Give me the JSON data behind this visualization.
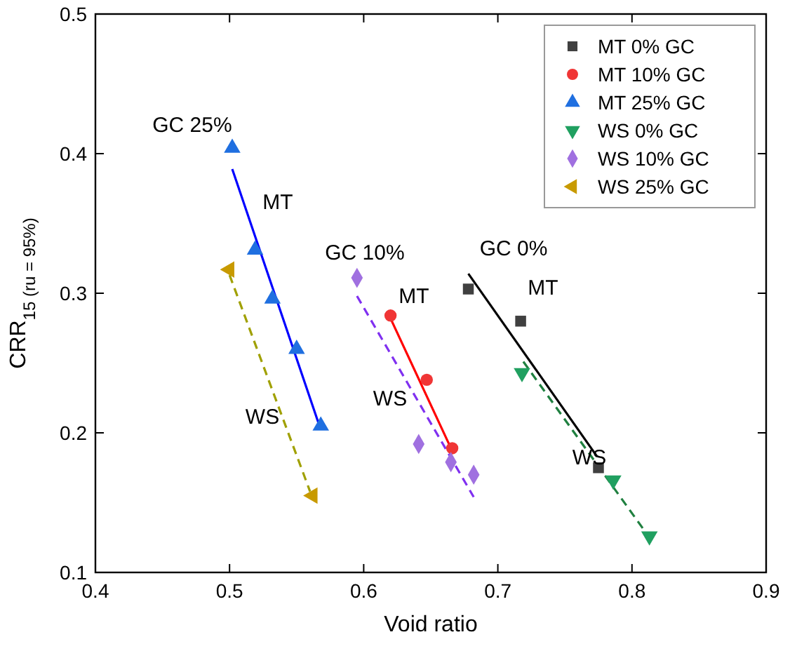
{
  "chart_data": {
    "type": "scatter",
    "xlabel": "Void ratio",
    "ylabel": "CRR$_{15 (ru = 95%)}$",
    "xlim": [
      0.4,
      0.9
    ],
    "ylim": [
      0.1,
      0.5
    ],
    "xticks": [
      0.4,
      0.5,
      0.6,
      0.7,
      0.8,
      0.9
    ],
    "yticks": [
      0.1,
      0.2,
      0.3,
      0.4,
      0.5
    ],
    "grid": false,
    "legend": "top right",
    "series": [
      {
        "name": "MT 0% GC",
        "color": "#404040",
        "marker": "square",
        "x": [
          0.678,
          0.717,
          0.775
        ],
        "values": [
          0.303,
          0.28,
          0.175
        ]
      },
      {
        "name": "MT 10% GC",
        "color": "#f03535",
        "marker": "circle",
        "x": [
          0.62,
          0.647,
          0.666
        ],
        "values": [
          0.284,
          0.238,
          0.189
        ]
      },
      {
        "name": "MT 25% GC",
        "color": "#1f6fe0",
        "marker": "triangle",
        "x": [
          0.502,
          0.519,
          0.532,
          0.55,
          0.568
        ],
        "values": [
          0.404,
          0.331,
          0.296,
          0.26,
          0.205
        ]
      },
      {
        "name": "WS 0% GC",
        "color": "#20a060",
        "marker": "triangle-down",
        "x": [
          0.718,
          0.786,
          0.813
        ],
        "values": [
          0.243,
          0.166,
          0.126
        ]
      },
      {
        "name": "WS 10% GC",
        "color": "#a070e0",
        "marker": "diamond",
        "x": [
          0.595,
          0.641,
          0.665,
          0.682
        ],
        "values": [
          0.311,
          0.192,
          0.179,
          0.17
        ]
      },
      {
        "name": "WS 25% GC",
        "color": "#c89a00",
        "marker": "triangle-left",
        "x": [
          0.5,
          0.562
        ],
        "values": [
          0.317,
          0.155
        ]
      },
      {
        "type": "line",
        "color": "#000000",
        "line_style": "solid",
        "x": [
          0.678,
          0.774
        ],
        "values": [
          0.314,
          0.183
        ]
      },
      {
        "type": "line",
        "color": "#ff0000",
        "line_style": "solid",
        "x": [
          0.62,
          0.666
        ],
        "values": [
          0.282,
          0.187
        ]
      },
      {
        "type": "line",
        "color": "#0000ff",
        "line_style": "solid",
        "x": [
          0.502,
          0.567
        ],
        "values": [
          0.389,
          0.205
        ]
      },
      {
        "type": "line",
        "color": "#208040",
        "line_style": "dashed",
        "x": [
          0.719,
          0.813
        ],
        "values": [
          0.251,
          0.125
        ]
      },
      {
        "type": "line",
        "color": "#8030f0",
        "line_style": "dashed",
        "x": [
          0.595,
          0.682
        ],
        "values": [
          0.298,
          0.154
        ]
      },
      {
        "type": "line",
        "color": "#a0a000",
        "line_style": "dashed",
        "x": [
          0.5,
          0.56
        ],
        "values": [
          0.313,
          0.158
        ]
      }
    ],
    "annotations": [
      "GC 25%",
      "MT",
      "WS",
      "GC 10%",
      "MT",
      "WS",
      "GC 0%",
      "MT",
      "WS"
    ]
  }
}
